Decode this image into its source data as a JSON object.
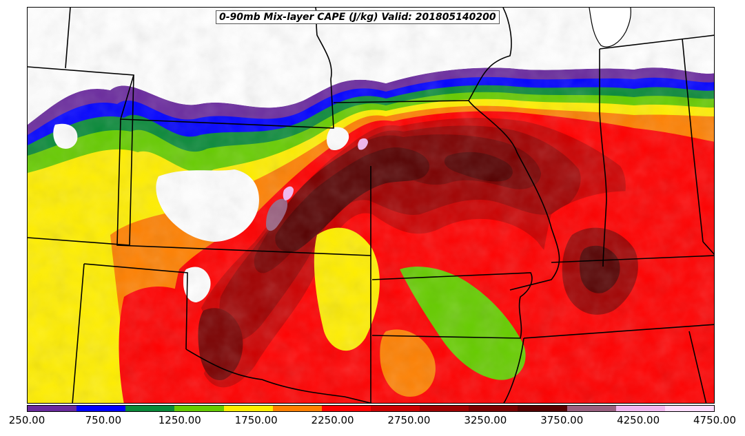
{
  "title": "0-90mb Mix-layer CAPE (J/kg) Valid: 201805140200",
  "colorbar": {
    "colors": [
      "#6a2a9e",
      "#0000ff",
      "#0a8a3a",
      "#66cc00",
      "#ffee00",
      "#ff8000",
      "#ff0000",
      "#cc0000",
      "#a00000",
      "#7a0000",
      "#550000",
      "#9a6080",
      "#f2b6f0",
      "#ffdcff"
    ],
    "ticks": [
      "250.00",
      "750.00",
      "1250.00",
      "1750.00",
      "2250.00",
      "2750.00",
      "3250.00",
      "3750.00",
      "4250.00",
      "4750.00"
    ]
  },
  "map": {
    "field": "0-90mb Mix-layer CAPE",
    "units": "J/kg",
    "range": [
      250,
      4750
    ]
  }
}
